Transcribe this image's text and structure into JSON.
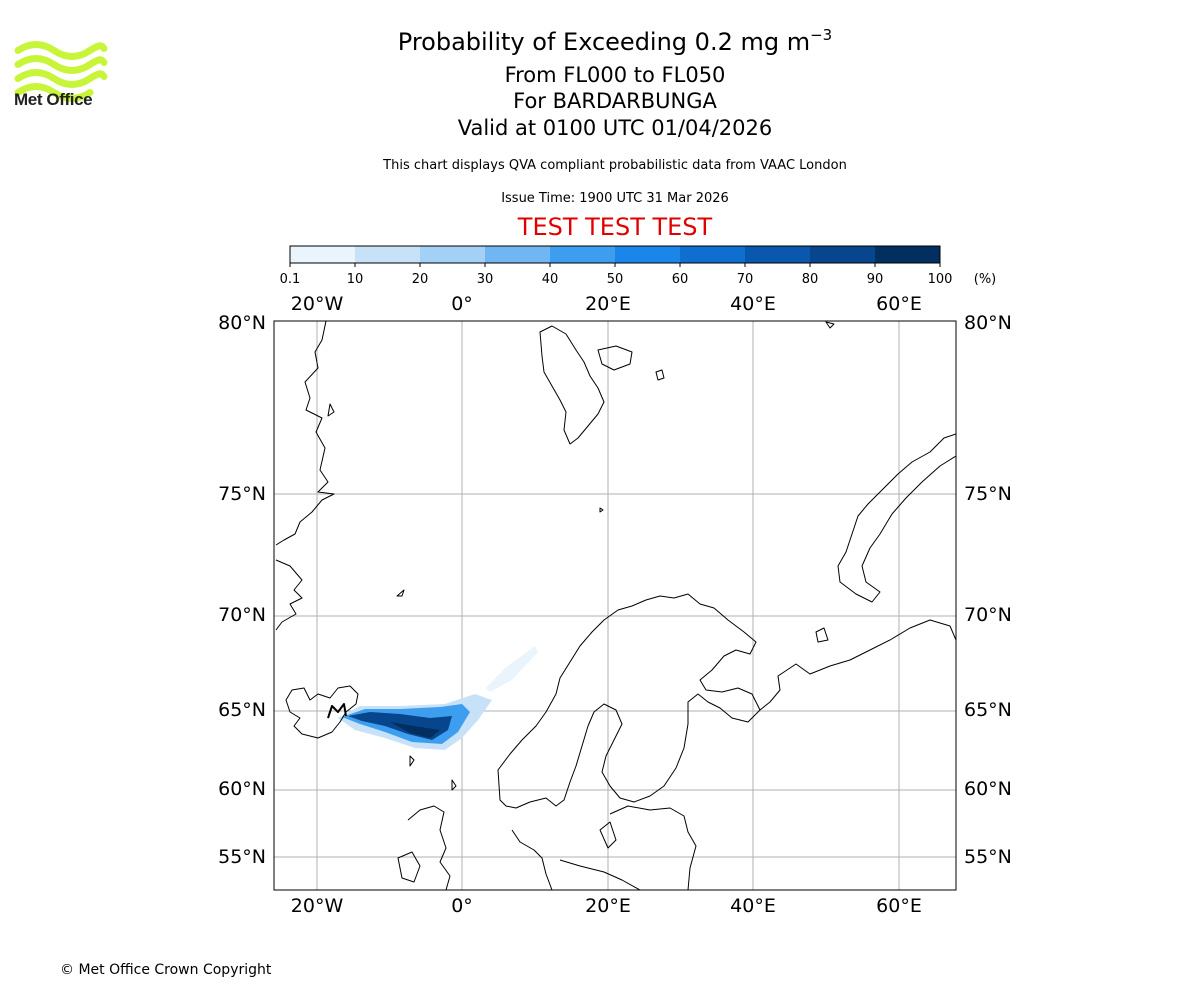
{
  "header": {
    "title_prefix": "Probability of Exceeding 0.2 mg m",
    "title_exponent": "−3",
    "flight_levels": "From FL000 to FL050",
    "volcano": "For BARDARBUNGA",
    "valid_time": "Valid at 0100 UTC 01/04/2026",
    "subtitle": "This chart displays QVA compliant probabilistic data from VAAC London",
    "issue_time": "Issue Time: 1900 UTC 31 Mar 2026",
    "test_banner": "TEST TEST TEST"
  },
  "logo": {
    "name": "Met Office",
    "color": "#c8f53a"
  },
  "colorbar": {
    "tick_labels": [
      "0.1",
      "10",
      "20",
      "30",
      "40",
      "50",
      "60",
      "70",
      "80",
      "90",
      "100"
    ],
    "unit": "(%)",
    "colors": [
      "#eaf4fc",
      "#c7e2f8",
      "#a3d0f5",
      "#6fb6f3",
      "#3d9ef0",
      "#1a86ea",
      "#0e6fd0",
      "#0a58ad",
      "#07458c",
      "#032e60"
    ]
  },
  "map": {
    "lon_labels": [
      "20°W",
      "0°",
      "20°E",
      "40°E",
      "60°E"
    ],
    "lat_labels": [
      "80°N",
      "75°N",
      "70°N",
      "65°N",
      "60°N",
      "55°N"
    ],
    "ash_plume_probability_percent": {
      "core": "90-100",
      "mid": "60-90",
      "edge": "0.1-30"
    }
  },
  "footer": {
    "copyright": "© Met Office Crown Copyright"
  }
}
